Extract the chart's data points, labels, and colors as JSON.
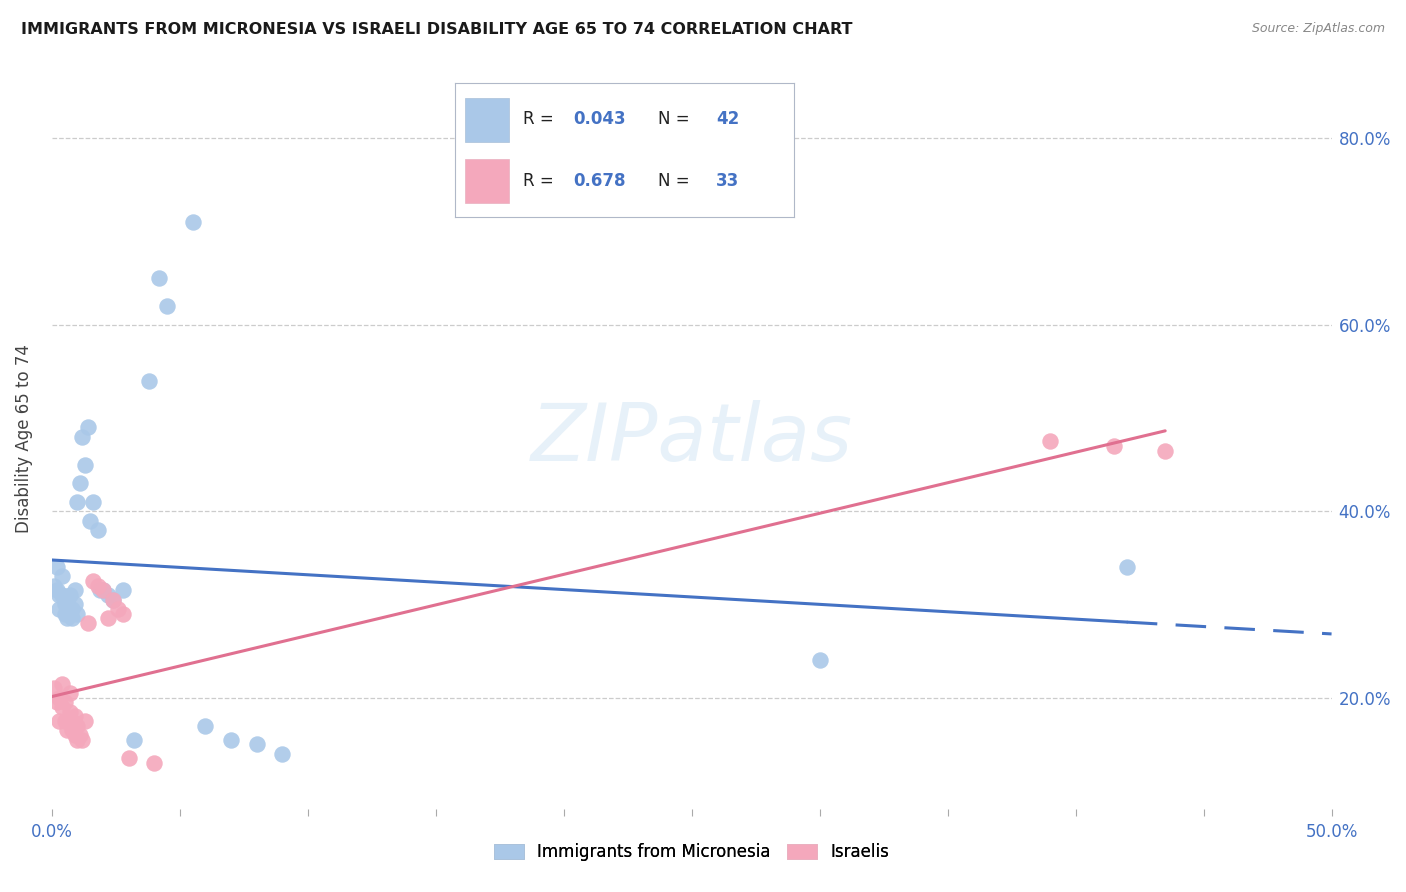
{
  "title": "IMMIGRANTS FROM MICRONESIA VS ISRAELI DISABILITY AGE 65 TO 74 CORRELATION CHART",
  "source": "Source: ZipAtlas.com",
  "ylabel": "Disability Age 65 to 74",
  "xlim": [
    0.0,
    0.5
  ],
  "ylim": [
    0.08,
    0.875
  ],
  "xticks": [
    0.0,
    0.05,
    0.1,
    0.15,
    0.2,
    0.25,
    0.3,
    0.35,
    0.4,
    0.45,
    0.5
  ],
  "xtick_labels_major": [
    "0.0%",
    "",
    "",
    "",
    "",
    "",
    "",
    "",
    "",
    "",
    "50.0%"
  ],
  "yticks": [
    0.2,
    0.4,
    0.6,
    0.8
  ],
  "ytick_labels": [
    "20.0%",
    "40.0%",
    "60.0%",
    "80.0%"
  ],
  "background_color": "#ffffff",
  "watermark": "ZIPatlas",
  "blue_series": {
    "label": "Immigrants from Micronesia",
    "R": "0.043",
    "N": "42",
    "color": "#aac8e8",
    "line_color": "#4472c4",
    "x": [
      0.001,
      0.002,
      0.002,
      0.003,
      0.003,
      0.004,
      0.004,
      0.005,
      0.005,
      0.006,
      0.006,
      0.007,
      0.007,
      0.008,
      0.008,
      0.009,
      0.009,
      0.01,
      0.01,
      0.011,
      0.012,
      0.013,
      0.014,
      0.015,
      0.016,
      0.018,
      0.019,
      0.02,
      0.022,
      0.024,
      0.028,
      0.032,
      0.038,
      0.042,
      0.045,
      0.055,
      0.06,
      0.07,
      0.08,
      0.09,
      0.3,
      0.42
    ],
    "y": [
      0.32,
      0.34,
      0.315,
      0.295,
      0.31,
      0.33,
      0.31,
      0.29,
      0.3,
      0.305,
      0.285,
      0.31,
      0.29,
      0.295,
      0.285,
      0.315,
      0.3,
      0.41,
      0.29,
      0.43,
      0.48,
      0.45,
      0.49,
      0.39,
      0.41,
      0.38,
      0.315,
      0.315,
      0.31,
      0.305,
      0.315,
      0.155,
      0.54,
      0.65,
      0.62,
      0.71,
      0.17,
      0.155,
      0.15,
      0.14,
      0.24,
      0.34
    ]
  },
  "pink_series": {
    "label": "Israelis",
    "R": "0.678",
    "N": "33",
    "color": "#f4a8bc",
    "line_color": "#e07090",
    "x": [
      0.001,
      0.002,
      0.003,
      0.003,
      0.004,
      0.004,
      0.005,
      0.005,
      0.006,
      0.007,
      0.007,
      0.008,
      0.008,
      0.009,
      0.009,
      0.01,
      0.01,
      0.011,
      0.012,
      0.013,
      0.014,
      0.016,
      0.018,
      0.02,
      0.022,
      0.024,
      0.026,
      0.028,
      0.03,
      0.04,
      0.39,
      0.415,
      0.435
    ],
    "y": [
      0.21,
      0.195,
      0.2,
      0.175,
      0.215,
      0.19,
      0.195,
      0.175,
      0.165,
      0.205,
      0.185,
      0.165,
      0.175,
      0.16,
      0.18,
      0.155,
      0.17,
      0.16,
      0.155,
      0.175,
      0.28,
      0.325,
      0.32,
      0.315,
      0.285,
      0.305,
      0.295,
      0.29,
      0.135,
      0.13,
      0.475,
      0.47,
      0.465
    ]
  }
}
